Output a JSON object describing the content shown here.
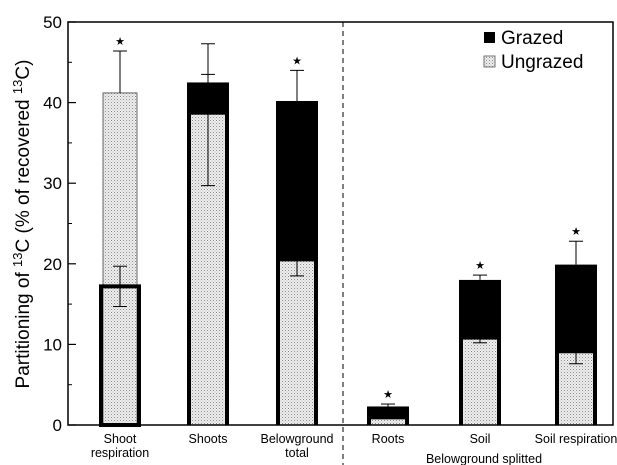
{
  "chart_data": {
    "type": "bar",
    "stacked": "overlay",
    "ylabel_parts": [
      "Partitioning of ",
      "13",
      "C (% of recovered ",
      "13",
      "C)"
    ],
    "ylim": [
      0,
      50
    ],
    "yticks": [
      0,
      10,
      20,
      30,
      40,
      50
    ],
    "ytick_labels": [
      "0",
      "10",
      "20",
      "30",
      "40",
      "50"
    ],
    "grid": false,
    "legend_position": "top-right",
    "categories": [
      [
        "Shoot",
        "respiration"
      ],
      [
        "Shoots"
      ],
      [
        "Belowground",
        "total"
      ],
      [
        "Roots"
      ],
      [
        "Soil"
      ],
      [
        "Soil respiration"
      ]
    ],
    "group_label": "Belowground splitted",
    "series": [
      {
        "name": "Grazed",
        "color": "#000000",
        "values": [
          17.2,
          42.5,
          40.2,
          2.3,
          18.0,
          19.9
        ],
        "error": [
          2.5,
          1.0,
          3.8,
          0.3,
          0.6,
          2.9
        ]
      },
      {
        "name": "Ungrazed",
        "color": "#d9d9d9",
        "values": [
          41.2,
          38.5,
          20.3,
          0.7,
          10.6,
          8.9
        ],
        "error": [
          5.2,
          8.8,
          1.8,
          0.0,
          0.4,
          1.3
        ]
      }
    ],
    "significance_marker": "★",
    "significant": [
      true,
      false,
      true,
      true,
      true,
      true
    ]
  }
}
